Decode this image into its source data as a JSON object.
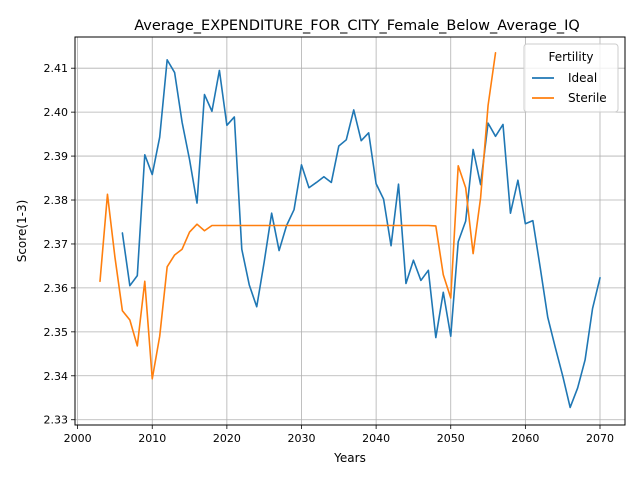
{
  "chart_data": {
    "type": "line",
    "title": "Average_EXPENDITURE_FOR_CITY_Female_Below_Average_IQ",
    "xlabel": "Years",
    "ylabel": "Score(1-3)",
    "xlim": [
      1999.65,
      2073.35
    ],
    "ylim": [
      2.3288,
      2.4171
    ],
    "x_ticks": [
      2000,
      2010,
      2020,
      2030,
      2040,
      2050,
      2060,
      2070
    ],
    "y_ticks": [
      2.33,
      2.34,
      2.35,
      2.36,
      2.37,
      2.38,
      2.39,
      2.4,
      2.41
    ],
    "x_tick_labels": [
      "2000",
      "2010",
      "2020",
      "2030",
      "2040",
      "2050",
      "2060",
      "2070"
    ],
    "y_tick_labels": [
      "2.33",
      "2.34",
      "2.35",
      "2.36",
      "2.37",
      "2.38",
      "2.39",
      "2.40",
      "2.41"
    ],
    "grid": true,
    "legend": {
      "title": "Fertility",
      "placement": "top-right"
    },
    "series": [
      {
        "name": "Ideal",
        "color": "#1f77b4",
        "x": [
          2006,
          2007,
          2008,
          2009,
          2010,
          2011,
          2012,
          2013,
          2014,
          2015,
          2016,
          2017,
          2018,
          2019,
          2020,
          2021,
          2022,
          2023,
          2024,
          2025,
          2026,
          2027,
          2028,
          2029,
          2030,
          2031,
          2032,
          2033,
          2034,
          2035,
          2036,
          2037,
          2038,
          2039,
          2040,
          2041,
          2042,
          2043,
          2044,
          2045,
          2046,
          2047,
          2048,
          2049,
          2050,
          2051,
          2052,
          2053,
          2054,
          2055,
          2056,
          2057,
          2058,
          2059,
          2060,
          2061,
          2062,
          2063,
          2064,
          2065,
          2066,
          2067,
          2068,
          2069,
          2070
        ],
        "values": [
          2.3725,
          2.3605,
          2.3628,
          2.3903,
          2.3858,
          2.3943,
          2.4119,
          2.409,
          2.3977,
          2.3892,
          2.3793,
          2.404,
          2.4002,
          2.4095,
          2.397,
          2.3989,
          2.3688,
          2.3607,
          2.3557,
          2.3659,
          2.377,
          2.3685,
          2.3742,
          2.3778,
          2.388,
          2.3828,
          2.384,
          2.3853,
          2.384,
          2.3923,
          2.3937,
          2.4005,
          2.3935,
          2.3953,
          2.3837,
          2.3802,
          2.3696,
          2.3836,
          2.361,
          2.3663,
          2.3617,
          2.364,
          2.3487,
          2.359,
          2.349,
          2.3705,
          2.3752,
          2.3915,
          2.3835,
          2.3975,
          2.3945,
          2.3972,
          2.377,
          2.3845,
          2.3746,
          2.3753,
          2.3645,
          2.3533,
          2.3465,
          2.34,
          2.3328,
          2.3372,
          2.3436,
          2.3553,
          2.3623
        ]
      },
      {
        "name": "Sterile",
        "color": "#ff7f0e",
        "x": [
          2003,
          2004,
          2005,
          2006,
          2007,
          2008,
          2009,
          2010,
          2011,
          2012,
          2013,
          2014,
          2015,
          2016,
          2017,
          2018,
          2019,
          2020,
          2021,
          2022,
          2023,
          2024,
          2025,
          2026,
          2027,
          2028,
          2029,
          2030,
          2031,
          2032,
          2033,
          2034,
          2035,
          2036,
          2037,
          2038,
          2039,
          2040,
          2041,
          2042,
          2043,
          2044,
          2045,
          2046,
          2047,
          2048,
          2049,
          2050,
          2051,
          2052,
          2053,
          2054,
          2055,
          2056
        ],
        "values": [
          2.3615,
          2.3813,
          2.367,
          2.3548,
          2.3527,
          2.3468,
          2.3615,
          2.3393,
          2.349,
          2.3648,
          2.3675,
          2.3688,
          2.3727,
          2.3745,
          2.373,
          2.3742,
          2.3742,
          2.3742,
          2.3742,
          2.3742,
          2.3742,
          2.3742,
          2.3742,
          2.3742,
          2.3742,
          2.3742,
          2.3742,
          2.3742,
          2.3742,
          2.3742,
          2.3742,
          2.3742,
          2.3742,
          2.3742,
          2.3742,
          2.3742,
          2.3742,
          2.3742,
          2.3742,
          2.3742,
          2.3742,
          2.3742,
          2.3742,
          2.3742,
          2.3742,
          2.3741,
          2.363,
          2.3577,
          2.3878,
          2.3828,
          2.3678,
          2.3805,
          2.4015,
          2.4135
        ]
      }
    ]
  }
}
